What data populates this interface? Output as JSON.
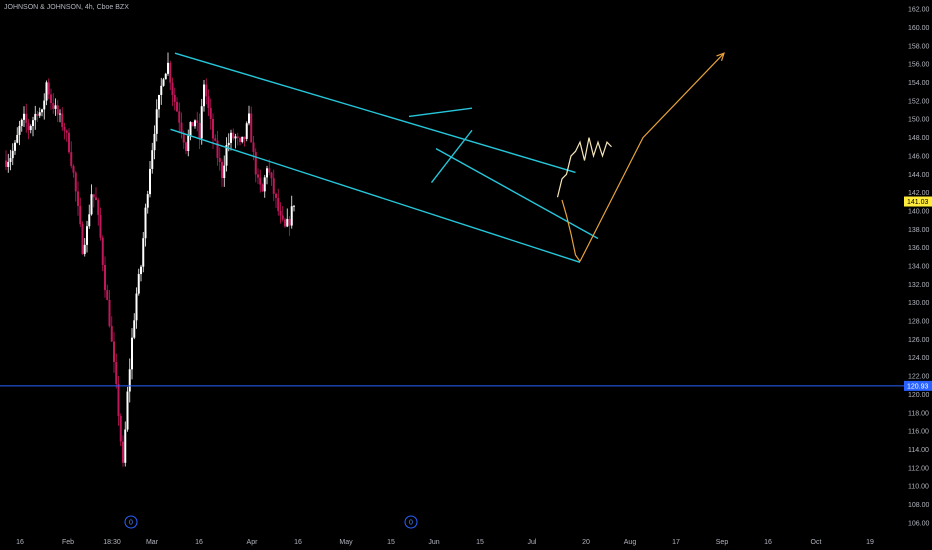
{
  "header": {
    "title": "JOHNSON & JOHNSON, 4h, Cboe BZX"
  },
  "colors": {
    "background": "#000000",
    "up_candle": "#ffffff",
    "down_candle": "#c2185b",
    "channel": "#26c6da",
    "projection": "#e6a23c",
    "support_line": "#2962ff",
    "last_price_bg": "#ffeb3b",
    "axis_text": "#b2b5be"
  },
  "chart_data": {
    "type": "candlestick",
    "y_axis": {
      "min": 105,
      "max": 163,
      "ticks": [
        106,
        108,
        110,
        112,
        114,
        116,
        118,
        120,
        122,
        124,
        126,
        128,
        130,
        132,
        134,
        136,
        138,
        140,
        142,
        144,
        146,
        148,
        150,
        152,
        154,
        156,
        158,
        160,
        162
      ],
      "tick_labels": [
        "106.00",
        "108.00",
        "110.00",
        "112.00",
        "114.00",
        "116.00",
        "118.00",
        "120.00",
        "122.00",
        "124.00",
        "126.00",
        "128.00",
        "130.00",
        "132.00",
        "134.00",
        "136.00",
        "138.00",
        "140.00",
        "142.00",
        "144.00",
        "146.00",
        "148.00",
        "150.00",
        "152.00",
        "154.00",
        "156.00",
        "158.00",
        "160.00",
        "162.00"
      ]
    },
    "x_axis": {
      "labels": [
        "16",
        "Feb",
        "18:30",
        "Mar",
        "16",
        "Apr",
        "16",
        "May",
        "15",
        "Jun",
        "15",
        "Jul",
        "20",
        "Aug",
        "17",
        "Sep",
        "16",
        "Oct",
        "19"
      ]
    },
    "price_path": [
      [
        0,
        145.5
      ],
      [
        1,
        146
      ],
      [
        2,
        147
      ],
      [
        3,
        149
      ],
      [
        4,
        150
      ],
      [
        5,
        149
      ],
      [
        6,
        150
      ],
      [
        7,
        151
      ],
      [
        8,
        150.5
      ],
      [
        9,
        154
      ],
      [
        10,
        152
      ],
      [
        11,
        151
      ],
      [
        12,
        150
      ],
      [
        13,
        149
      ],
      [
        14,
        147
      ],
      [
        15,
        144
      ],
      [
        16,
        140
      ],
      [
        17,
        136
      ],
      [
        18,
        138
      ],
      [
        19,
        142
      ],
      [
        20,
        141
      ],
      [
        21,
        137
      ],
      [
        22,
        132
      ],
      [
        23,
        128
      ],
      [
        24,
        123
      ],
      [
        25,
        118
      ],
      [
        26,
        112
      ],
      [
        27,
        120
      ],
      [
        28,
        126
      ],
      [
        29,
        131
      ],
      [
        30,
        134
      ],
      [
        31,
        140
      ],
      [
        32,
        145
      ],
      [
        33,
        149
      ],
      [
        34,
        152
      ],
      [
        35,
        155
      ],
      [
        36,
        156
      ],
      [
        37,
        153
      ],
      [
        38,
        151
      ],
      [
        39,
        149
      ],
      [
        40,
        147
      ],
      [
        41,
        149
      ],
      [
        42,
        150
      ],
      [
        43,
        148
      ],
      [
        44,
        154
      ],
      [
        45,
        151
      ],
      [
        46,
        148
      ],
      [
        47,
        146
      ],
      [
        48,
        144
      ],
      [
        49,
        147
      ],
      [
        50,
        148
      ],
      [
        51,
        148
      ],
      [
        52,
        147
      ],
      [
        53,
        148
      ],
      [
        54,
        150
      ],
      [
        55,
        146
      ],
      [
        56,
        143
      ],
      [
        57,
        142
      ],
      [
        58,
        145
      ],
      [
        59,
        143
      ],
      [
        60,
        141
      ],
      [
        61,
        139
      ],
      [
        62,
        138
      ],
      [
        63,
        139
      ],
      [
        64,
        141
      ]
    ],
    "last_price": {
      "value": 141.03,
      "label": "141.03"
    },
    "support": {
      "value": 120.93,
      "label": "120.93"
    },
    "drawings": {
      "channel_upper": [
        [
          38,
          157.2
        ],
        [
          127,
          144.2
        ]
      ],
      "channel_lower": [
        [
          37,
          148.9
        ],
        [
          128,
          134.4
        ]
      ],
      "small_channel_upper": [
        [
          96,
          146.8
        ],
        [
          132,
          137
        ]
      ],
      "flag_upper": [
        [
          90,
          150.3
        ],
        [
          104,
          151.2
        ]
      ],
      "flag_lower": [
        [
          95,
          143.1
        ],
        [
          104,
          148.8
        ]
      ]
    },
    "projection_dip": [
      [
        124,
        141.2
      ],
      [
        125,
        139.5
      ],
      [
        126,
        137.5
      ],
      [
        127,
        135.2
      ],
      [
        128,
        134.5
      ]
    ],
    "projection_up": [
      [
        128,
        134.5
      ],
      [
        142,
        148
      ],
      [
        160,
        157.2
      ]
    ],
    "projection_wiggle": [
      [
        123,
        141.5
      ],
      [
        124,
        143.5
      ],
      [
        125,
        144
      ],
      [
        126,
        146
      ],
      [
        127,
        146.5
      ],
      [
        128,
        147.5
      ],
      [
        129,
        145.5
      ],
      [
        130,
        148
      ],
      [
        131,
        146
      ],
      [
        132,
        147.5
      ],
      [
        133,
        146
      ],
      [
        134,
        147.5
      ],
      [
        135,
        147
      ]
    ],
    "event_markers": [
      {
        "label": "0"
      },
      {
        "label": "0"
      }
    ]
  }
}
